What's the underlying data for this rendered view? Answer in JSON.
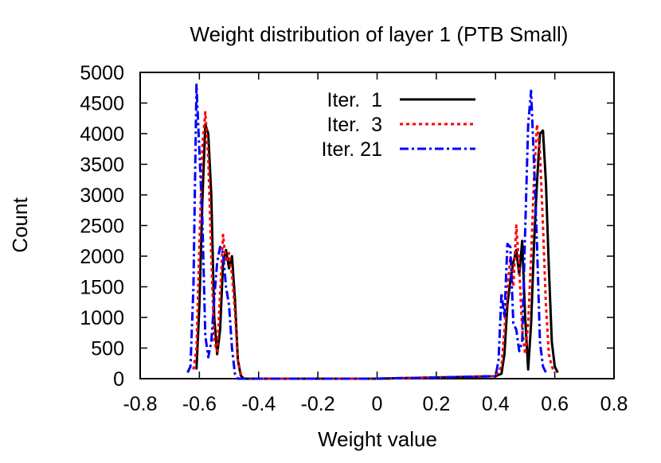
{
  "chart_data": {
    "type": "line",
    "title": "Weight distribution of layer 1 (PTB Small)",
    "xlabel": "Weight value",
    "ylabel": "Count",
    "xlim": [
      -0.8,
      0.8
    ],
    "ylim": [
      0,
      5000
    ],
    "x_ticks": [
      "-0.8",
      "-0.6",
      "-0.4",
      "-0.2",
      "0",
      "0.2",
      "0.4",
      "0.6",
      "0.8"
    ],
    "y_ticks": [
      "0",
      "500",
      "1000",
      "1500",
      "2000",
      "2500",
      "3000",
      "3500",
      "4000",
      "4500",
      "5000"
    ],
    "x_tick_values": [
      -0.8,
      -0.6,
      -0.4,
      -0.2,
      0,
      0.2,
      0.4,
      0.6,
      0.8
    ],
    "y_tick_values": [
      0,
      500,
      1000,
      1500,
      2000,
      2500,
      3000,
      3500,
      4000,
      4500,
      5000
    ],
    "grid": false,
    "legend_position": "top-center",
    "series": [
      {
        "name": "Iter.  1",
        "color": "#000000",
        "dash": "solid",
        "points": [
          [
            -0.61,
            150
          ],
          [
            -0.6,
            1200
          ],
          [
            -0.59,
            2900
          ],
          [
            -0.58,
            4150
          ],
          [
            -0.57,
            4000
          ],
          [
            -0.56,
            3000
          ],
          [
            -0.55,
            1000
          ],
          [
            -0.54,
            400
          ],
          [
            -0.53,
            800
          ],
          [
            -0.52,
            1900
          ],
          [
            -0.51,
            2100
          ],
          [
            -0.5,
            1800
          ],
          [
            -0.49,
            2000
          ],
          [
            -0.48,
            1300
          ],
          [
            -0.47,
            300
          ],
          [
            -0.46,
            50
          ],
          [
            -0.45,
            0
          ],
          [
            0.0,
            0
          ],
          [
            0.1,
            10
          ],
          [
            0.2,
            20
          ],
          [
            0.3,
            30
          ],
          [
            0.4,
            40
          ],
          [
            0.42,
            80
          ],
          [
            0.43,
            400
          ],
          [
            0.44,
            1200
          ],
          [
            0.45,
            1600
          ],
          [
            0.46,
            1900
          ],
          [
            0.47,
            2100
          ],
          [
            0.48,
            1700
          ],
          [
            0.49,
            2250
          ],
          [
            0.5,
            1000
          ],
          [
            0.51,
            150
          ],
          [
            0.52,
            900
          ],
          [
            0.53,
            2200
          ],
          [
            0.54,
            3200
          ],
          [
            0.55,
            4000
          ],
          [
            0.56,
            4050
          ],
          [
            0.57,
            3200
          ],
          [
            0.58,
            1800
          ],
          [
            0.59,
            600
          ],
          [
            0.6,
            200
          ],
          [
            0.61,
            100
          ]
        ]
      },
      {
        "name": "Iter.  3",
        "color": "#ff0000",
        "dash": "dotted",
        "points": [
          [
            -0.62,
            150
          ],
          [
            -0.61,
            500
          ],
          [
            -0.6,
            2200
          ],
          [
            -0.59,
            3800
          ],
          [
            -0.58,
            4350
          ],
          [
            -0.57,
            3600
          ],
          [
            -0.56,
            2000
          ],
          [
            -0.55,
            600
          ],
          [
            -0.54,
            450
          ],
          [
            -0.53,
            1400
          ],
          [
            -0.52,
            2350
          ],
          [
            -0.51,
            1900
          ],
          [
            -0.5,
            2050
          ],
          [
            -0.49,
            1700
          ],
          [
            -0.48,
            1100
          ],
          [
            -0.47,
            300
          ],
          [
            -0.46,
            80
          ],
          [
            -0.45,
            0
          ],
          [
            0.0,
            0
          ],
          [
            0.1,
            10
          ],
          [
            0.2,
            20
          ],
          [
            0.3,
            30
          ],
          [
            0.4,
            40
          ],
          [
            0.42,
            200
          ],
          [
            0.43,
            800
          ],
          [
            0.44,
            1400
          ],
          [
            0.45,
            2000
          ],
          [
            0.46,
            1500
          ],
          [
            0.47,
            2500
          ],
          [
            0.48,
            1800
          ],
          [
            0.49,
            800
          ],
          [
            0.5,
            400
          ],
          [
            0.51,
            900
          ],
          [
            0.52,
            2000
          ],
          [
            0.53,
            3300
          ],
          [
            0.54,
            4150
          ],
          [
            0.55,
            3700
          ],
          [
            0.56,
            2500
          ],
          [
            0.57,
            1200
          ],
          [
            0.58,
            400
          ],
          [
            0.59,
            200
          ],
          [
            0.6,
            100
          ]
        ]
      },
      {
        "name": "Iter. 21",
        "color": "#0000ff",
        "dash": "dashdot",
        "points": [
          [
            -0.64,
            100
          ],
          [
            -0.63,
            200
          ],
          [
            -0.62,
            1500
          ],
          [
            -0.61,
            4800
          ],
          [
            -0.6,
            3700
          ],
          [
            -0.59,
            2600
          ],
          [
            -0.58,
            700
          ],
          [
            -0.57,
            350
          ],
          [
            -0.56,
            600
          ],
          [
            -0.55,
            1300
          ],
          [
            -0.54,
            1900
          ],
          [
            -0.53,
            2150
          ],
          [
            -0.52,
            2050
          ],
          [
            -0.51,
            1500
          ],
          [
            -0.5,
            1200
          ],
          [
            -0.49,
            500
          ],
          [
            -0.48,
            80
          ],
          [
            -0.47,
            0
          ],
          [
            0.0,
            0
          ],
          [
            0.1,
            10
          ],
          [
            0.2,
            20
          ],
          [
            0.3,
            30
          ],
          [
            0.4,
            40
          ],
          [
            0.41,
            300
          ],
          [
            0.42,
            1400
          ],
          [
            0.43,
            1000
          ],
          [
            0.44,
            2200
          ],
          [
            0.45,
            2150
          ],
          [
            0.46,
            900
          ],
          [
            0.47,
            800
          ],
          [
            0.48,
            450
          ],
          [
            0.49,
            600
          ],
          [
            0.5,
            2400
          ],
          [
            0.51,
            4150
          ],
          [
            0.52,
            4700
          ],
          [
            0.53,
            3500
          ],
          [
            0.54,
            2200
          ],
          [
            0.55,
            600
          ],
          [
            0.56,
            200
          ],
          [
            0.57,
            100
          ]
        ]
      }
    ]
  }
}
